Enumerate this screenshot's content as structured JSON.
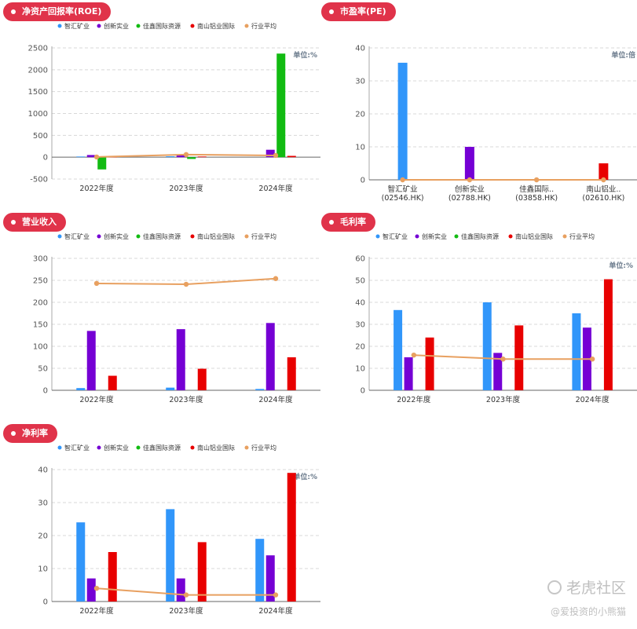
{
  "legend_colors": [
    "#3196fa",
    "#7500d4",
    "#12bb12",
    "#e80000",
    "#e8a060"
  ],
  "chart_data": [
    {
      "id": "roe",
      "type": "bar",
      "title": "净资产回报率(ROE)",
      "unit": "单位:%",
      "legend": [
        "智汇矿业",
        "创新实业",
        "佳鑫国际资源",
        "南山铝业国际",
        "行业平均"
      ],
      "categories": [
        "2022年度",
        "2023年度",
        "2024年度"
      ],
      "ylim": [
        -500,
        2500
      ],
      "yticks": [
        -500,
        0,
        500,
        1000,
        1500,
        2000,
        2500
      ],
      "series": [
        {
          "name": "智汇矿业",
          "values": [
            15,
            20,
            0
          ]
        },
        {
          "name": "创新实业",
          "values": [
            50,
            45,
            170
          ]
        },
        {
          "name": "佳鑫国际资源",
          "values": [
            -280,
            -40,
            2370
          ]
        },
        {
          "name": "南山铝业国际",
          "values": [
            10,
            15,
            30
          ]
        }
      ],
      "avg": {
        "name": "行业平均",
        "values": [
          5,
          60,
          40
        ]
      },
      "grid": true
    },
    {
      "id": "pe",
      "type": "bar",
      "title": "市盈率(PE)",
      "unit": "单位:倍",
      "legend": [],
      "categories": [
        "智汇矿业\n(02546.HK)",
        "创新实业\n(02788.HK)",
        "佳鑫国际..\n(03858.HK)",
        "南山铝业..\n(02610.HK)"
      ],
      "ylim": [
        0,
        40
      ],
      "yticks": [
        0,
        10,
        20,
        30,
        40
      ],
      "bars": [
        35.5,
        10,
        0,
        5
      ],
      "avg": {
        "name": "行业平均",
        "values": [
          0,
          0,
          0,
          0
        ]
      },
      "grid": true
    },
    {
      "id": "revenue",
      "type": "bar",
      "title": "营业收入",
      "unit": "",
      "legend": [
        "智汇矿业",
        "创新实业",
        "佳鑫国际资源",
        "南山铝业国际",
        "行业平均"
      ],
      "categories": [
        "2022年度",
        "2023年度",
        "2024年度"
      ],
      "ylim": [
        0,
        300
      ],
      "yticks": [
        0,
        50,
        100,
        150,
        200,
        250,
        300
      ],
      "series": [
        {
          "name": "智汇矿业",
          "values": [
            5,
            6,
            3
          ]
        },
        {
          "name": "创新实业",
          "values": [
            135,
            139,
            153
          ]
        },
        {
          "name": "佳鑫国际资源",
          "values": [
            0,
            0,
            0
          ]
        },
        {
          "name": "南山铝业国际",
          "values": [
            33,
            49,
            75
          ]
        }
      ],
      "avg": {
        "name": "行业平均",
        "values": [
          243,
          241,
          254
        ]
      },
      "grid": true
    },
    {
      "id": "gross",
      "type": "bar",
      "title": "毛利率",
      "unit": "单位:%",
      "legend": [
        "智汇矿业",
        "创新实业",
        "佳鑫国际资源",
        "南山铝业国际",
        "行业平均"
      ],
      "categories": [
        "2022年度",
        "2023年度",
        "2024年度"
      ],
      "ylim": [
        0,
        60
      ],
      "yticks": [
        0,
        10,
        20,
        30,
        40,
        50,
        60
      ],
      "series": [
        {
          "name": "智汇矿业",
          "values": [
            36.5,
            40,
            35
          ]
        },
        {
          "name": "创新实业",
          "values": [
            15,
            17,
            28.5
          ]
        },
        {
          "name": "佳鑫国际资源",
          "values": [
            0,
            0,
            0
          ]
        },
        {
          "name": "南山铝业国际",
          "values": [
            24,
            29.5,
            50.5
          ]
        }
      ],
      "avg": {
        "name": "行业平均",
        "values": [
          16,
          14.2,
          14.2
        ]
      },
      "grid": true
    },
    {
      "id": "net",
      "type": "bar",
      "title": "净利率",
      "unit": "单位:%",
      "legend": [
        "智汇矿业",
        "创新实业",
        "佳鑫国际资源",
        "南山铝业国际",
        "行业平均"
      ],
      "categories": [
        "2022年度",
        "2023年度",
        "2024年度"
      ],
      "ylim": [
        0,
        40
      ],
      "yticks": [
        0,
        10,
        20,
        30,
        40
      ],
      "series": [
        {
          "name": "智汇矿业",
          "values": [
            24,
            28,
            19
          ]
        },
        {
          "name": "创新实业",
          "values": [
            7,
            7,
            14
          ]
        },
        {
          "name": "佳鑫国际资源",
          "values": [
            0,
            0,
            0
          ]
        },
        {
          "name": "南山铝业国际",
          "values": [
            15,
            18,
            39
          ]
        }
      ],
      "avg": {
        "name": "行业平均",
        "values": [
          4,
          2,
          2
        ]
      },
      "grid": true
    }
  ],
  "watermark": {
    "logo": "老虎社区",
    "author": "@爱投资的小熊猫"
  }
}
